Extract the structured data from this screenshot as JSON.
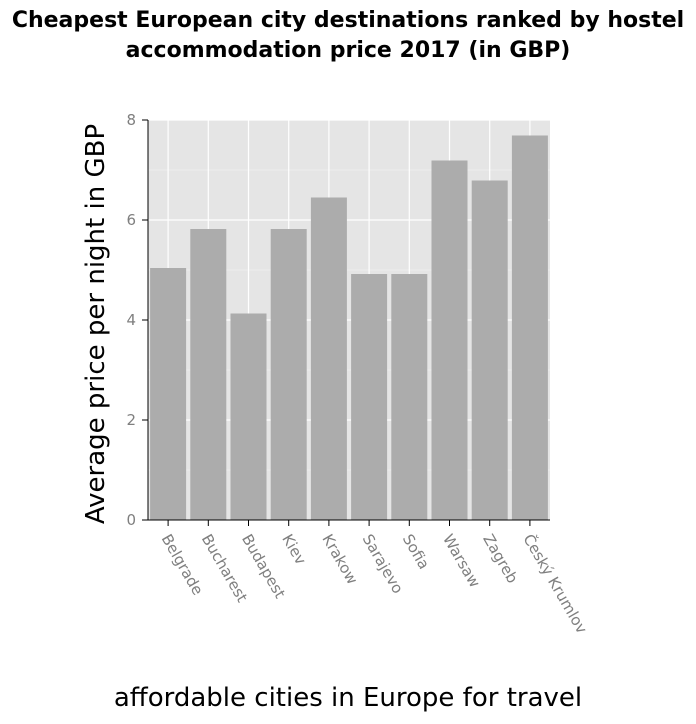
{
  "chart_data": {
    "type": "bar",
    "title": "Cheapest European city destinations ranked by hostel accommodation price 2017 (in GBP)",
    "xlabel": "affordable cities in Europe for travel",
    "ylabel": "Average price per night in GBP",
    "categories": [
      "Belgrade",
      "Bucharest",
      "Budapest",
      "Kiev",
      "Krakow",
      "Sarajevo",
      "Sofia",
      "Warsaw",
      "Zagreb",
      "Český Krumlov"
    ],
    "values": [
      5.04,
      5.82,
      4.13,
      5.82,
      6.45,
      4.92,
      4.92,
      7.19,
      6.79,
      7.69
    ],
    "ylim": [
      0,
      8
    ],
    "yticks": [
      0,
      2,
      4,
      6,
      8
    ],
    "grid": true,
    "colors": {
      "bar": "#acacac",
      "panel": "#e5e5e5",
      "grid": "#ffffff",
      "tick_text": "#7f7f7f"
    }
  }
}
